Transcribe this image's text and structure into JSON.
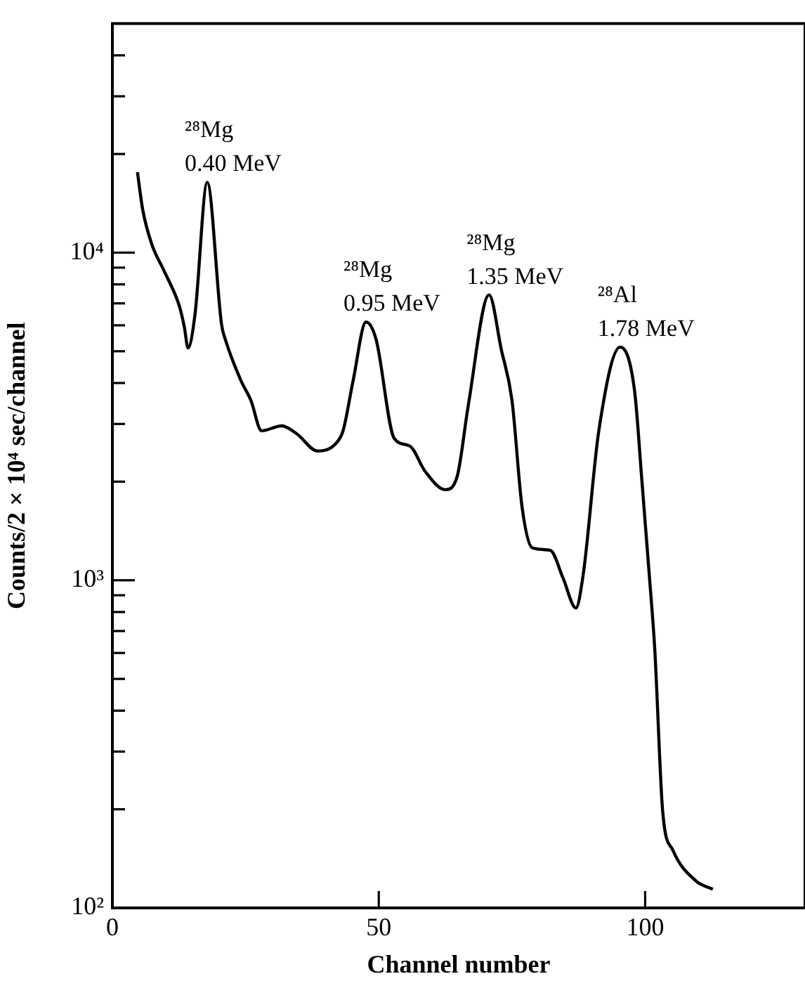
{
  "chart_data": {
    "type": "line",
    "xlabel": "Channel number",
    "ylabel": "Counts/2 × 10⁴ sec/channel",
    "log": "y",
    "xlim": [
      0,
      130
    ],
    "xticks": [
      0,
      50,
      100
    ],
    "ylim": [
      100,
      50000
    ],
    "yticks": [
      {
        "value": 100,
        "label": "10²"
      },
      {
        "value": 200,
        "label": null
      },
      {
        "value": 300,
        "label": null
      },
      {
        "value": 400,
        "label": null
      },
      {
        "value": 500,
        "label": null
      },
      {
        "value": 600,
        "label": null
      },
      {
        "value": 700,
        "label": null
      },
      {
        "value": 800,
        "label": null
      },
      {
        "value": 900,
        "label": null
      },
      {
        "value": 1000,
        "label": "10³"
      },
      {
        "value": 2000,
        "label": null
      },
      {
        "value": 3000,
        "label": null
      },
      {
        "value": 4000,
        "label": null
      },
      {
        "value": 5000,
        "label": null
      },
      {
        "value": 6000,
        "label": null
      },
      {
        "value": 7000,
        "label": null
      },
      {
        "value": 8000,
        "label": null
      },
      {
        "value": 9000,
        "label": null
      },
      {
        "value": 10000,
        "label": "10⁴"
      },
      {
        "value": 20000,
        "label": null
      },
      {
        "value": 30000,
        "label": null
      },
      {
        "value": 40000,
        "label": null
      }
    ],
    "series": [
      {
        "color": "#000000",
        "x": [
          4.7,
          5.7,
          7.4,
          9.7,
          12.6,
          13.5,
          14.2,
          15.5,
          17.8,
          20.5,
          21.2,
          24.1,
          26.0,
          28.0,
          31.8,
          34.6,
          38.5,
          41.9,
          43.3,
          45.2,
          47.6,
          49.5,
          52.9,
          55.8,
          58.7,
          62.5,
          64.7,
          66.8,
          70.7,
          73.0,
          75.0,
          76.9,
          78.8,
          82.2,
          84.6,
          87.0,
          88.4,
          91.3,
          95.3,
          98.0,
          99.4,
          100.9,
          101.8,
          103.3,
          105.2,
          109.5,
          112.7
        ],
        "values": [
          17600,
          13500,
          10600,
          8800,
          6840,
          5930,
          5120,
          6470,
          16400,
          6020,
          5430,
          4080,
          3540,
          2860,
          2960,
          2800,
          2480,
          2610,
          2860,
          4080,
          6140,
          5430,
          2710,
          2570,
          2150,
          1890,
          2070,
          3420,
          7430,
          5060,
          3540,
          1670,
          1257,
          1234,
          1014,
          823,
          1050,
          2860,
          5150,
          3800,
          2000,
          977,
          617,
          196,
          150,
          121,
          114
        ]
      }
    ],
    "annotations": [
      {
        "text": "²⁸Mg\n0.40 MeV",
        "x": 17.8,
        "y": 16400
      },
      {
        "text": "²⁸Mg\n0.95 MeV",
        "x": 47.6,
        "y": 6140
      },
      {
        "text": "²⁸Mg\n1.35 MeV",
        "x": 70.7,
        "y": 7430
      },
      {
        "text": "²⁸Al\n1.78 MeV",
        "x": 95.3,
        "y": 5150
      }
    ]
  }
}
